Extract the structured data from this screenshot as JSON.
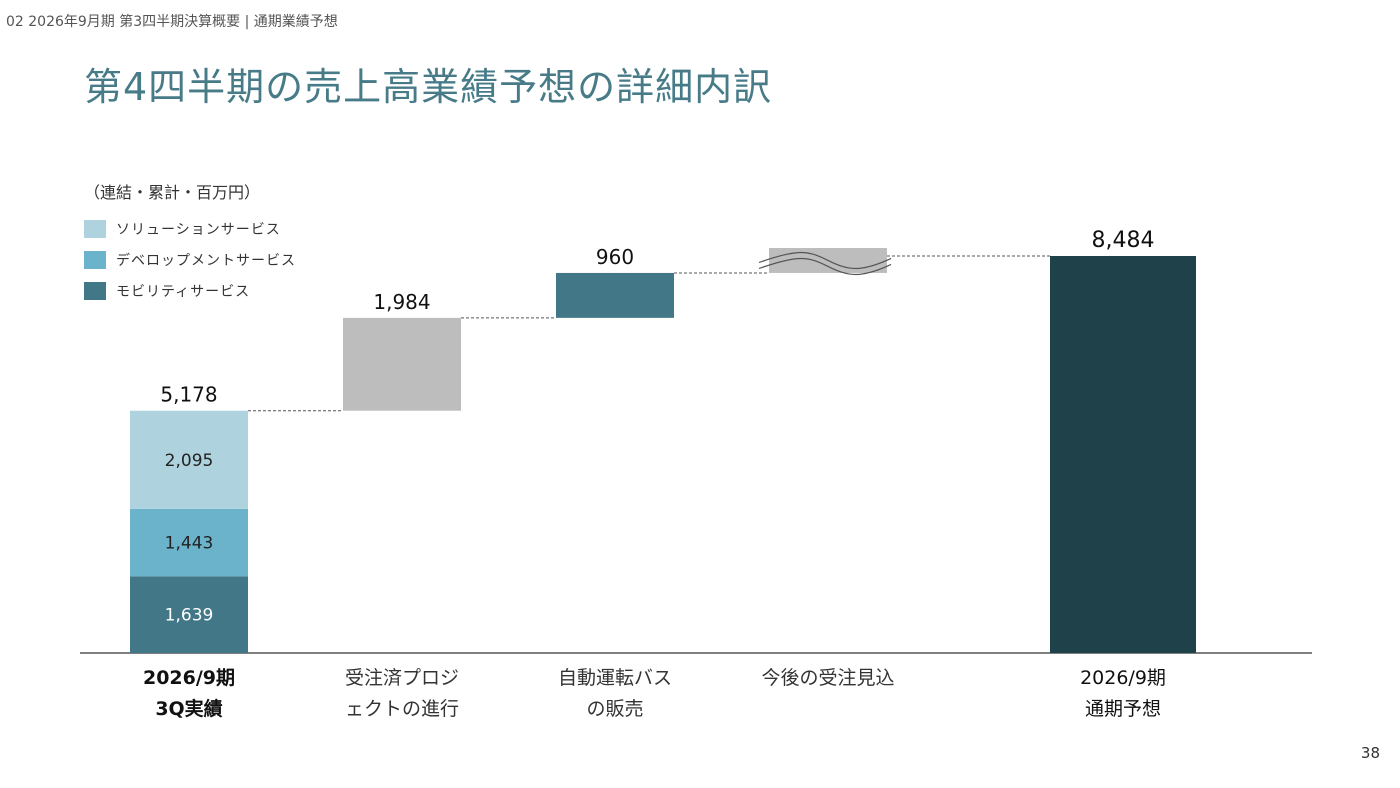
{
  "header": {
    "breadcrumb": "02 2026年9月期 第3四半期決算概要 | 通期業績予想",
    "title": "第4四半期の売上高業績予想の詳細内訳"
  },
  "units_label": "（連結・累計・百万円）",
  "legend": [
    {
      "label": "ソリューションサービス",
      "color": "#aed3df"
    },
    {
      "label": "デベロップメントサービス",
      "color": "#6bb3cb"
    },
    {
      "label": "モビリティサービス",
      "color": "#427788"
    }
  ],
  "chart_data": {
    "type": "waterfall",
    "ylim": [
      0,
      8484
    ],
    "categories": [
      "2026/9期\n3Q実績",
      "受注済プロジ\nェクトの進行",
      "自動運転バス\nの販売",
      "今後の受注見込",
      "2026/9期\n通期予想"
    ],
    "stacked_start": {
      "category": "2026/9期\n3Q実績",
      "total": 5178,
      "segments": [
        {
          "name": "モビリティサービス",
          "value": 1639,
          "color": "#427788"
        },
        {
          "name": "デベロップメントサービス",
          "value": 1443,
          "color": "#6bb3cb"
        },
        {
          "name": "ソリューションサービス",
          "value": 2095,
          "color": "#aed3df"
        }
      ]
    },
    "increments": [
      {
        "category": "受注済プロジ\nェクトの進行",
        "value": 1984,
        "label": "1,984",
        "color": "#bdbdbd"
      },
      {
        "category": "自動運転バス\nの販売",
        "value": 960,
        "label": "960",
        "color": "#427788"
      },
      {
        "category": "今後の受注見込",
        "value": null,
        "label": "",
        "color": "#bdbdbd",
        "broken_axis": true
      }
    ],
    "total": {
      "category": "2026/9期\n通期予想",
      "value": 8484,
      "label": "8,484",
      "color": "#1f414a"
    },
    "labels": {
      "start_total": "5,178",
      "seg_mobility": "1,639",
      "seg_development": "1,443",
      "seg_solution": "2,095"
    }
  },
  "page_number": "38"
}
